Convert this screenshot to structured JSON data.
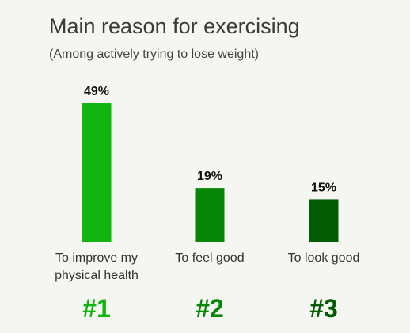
{
  "chart_data": {
    "type": "bar",
    "title": "Main reason for exercising",
    "subtitle": "(Among actively trying to lose weight)",
    "categories": [
      [
        "To improve my",
        "physical health"
      ],
      [
        "To feel good"
      ],
      [
        "To look good"
      ]
    ],
    "values": [
      49,
      19,
      15
    ],
    "value_labels": [
      "49%",
      "19%",
      "15%"
    ],
    "ranks": [
      "#1",
      "#2",
      "#3"
    ],
    "colors": [
      "#10b510",
      "#078707",
      "#035c03"
    ],
    "ylim": [
      0,
      49
    ],
    "grid": false
  }
}
